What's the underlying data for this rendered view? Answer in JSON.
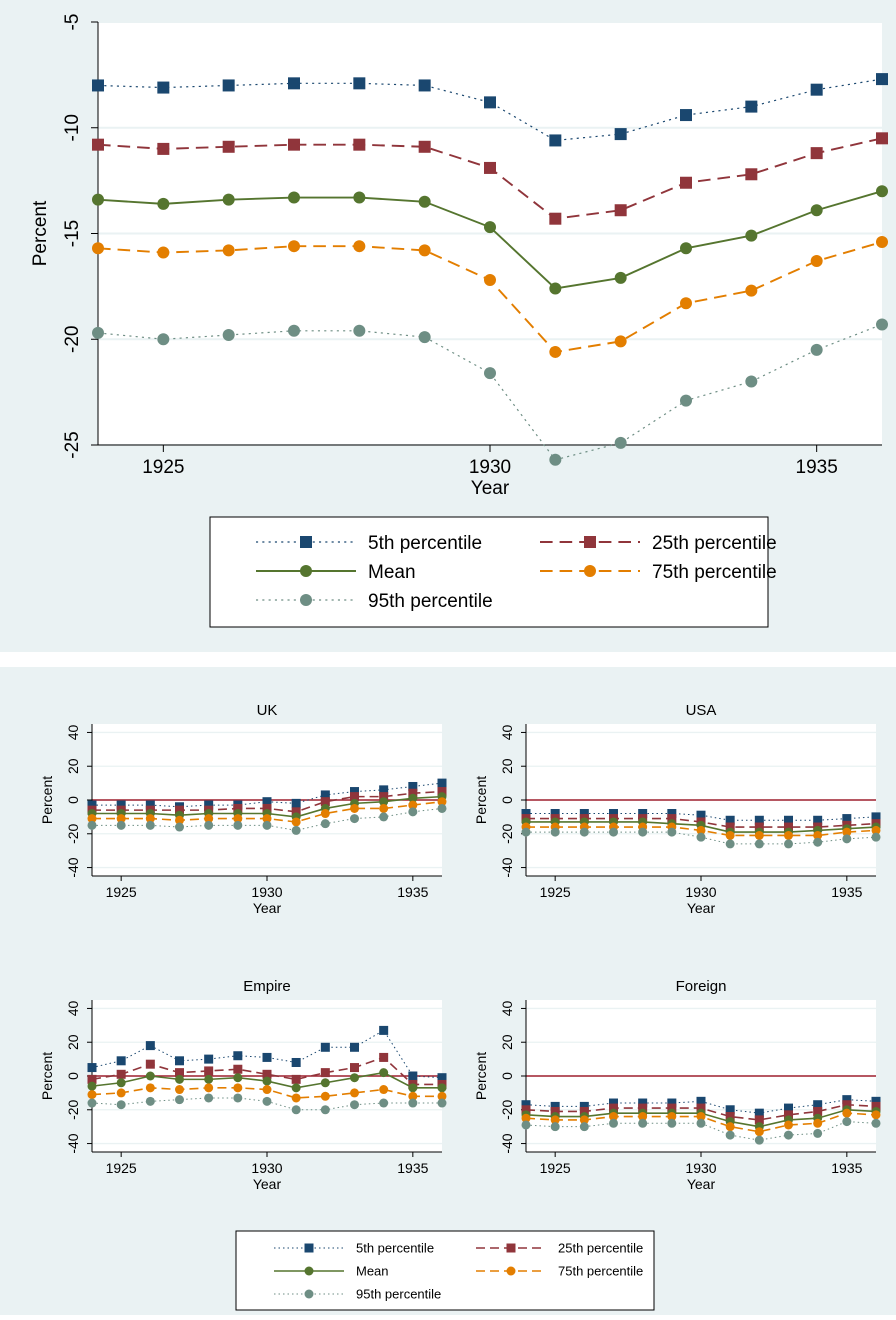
{
  "colors": {
    "panel_bg": "#eaf2f3",
    "plot_bg": "#ffffff",
    "grid": "#eaf2f3",
    "zero_line": "#a0202e",
    "p5": "#1a476f",
    "p25": "#90353b",
    "mean": "#55752f",
    "p75": "#e37e00",
    "p95": "#6e8e84"
  },
  "chart_data": [
    {
      "id": "overall",
      "type": "line",
      "title": "",
      "xlabel": "Year",
      "ylabel": "Percent",
      "xlim": [
        1924,
        1936
      ],
      "ylim": [
        -25,
        -5
      ],
      "xticks": [
        1925,
        1930,
        1935
      ],
      "yticks": [
        -25,
        -20,
        -15,
        -10,
        -5
      ],
      "zero_line": false,
      "x": [
        1924,
        1925,
        1926,
        1927,
        1928,
        1929,
        1930,
        1931,
        1932,
        1933,
        1934,
        1935,
        1936
      ],
      "series": [
        {
          "key": "p5",
          "name": "5th percentile",
          "values": [
            -8.0,
            -8.1,
            -8.0,
            -7.9,
            -7.9,
            -8.0,
            -8.8,
            -10.6,
            -10.3,
            -9.4,
            -9.0,
            -8.2,
            -7.7
          ]
        },
        {
          "key": "p25",
          "name": "25th percentile",
          "values": [
            -10.8,
            -11.0,
            -10.9,
            -10.8,
            -10.8,
            -10.9,
            -11.9,
            -14.3,
            -13.9,
            -12.6,
            -12.2,
            -11.2,
            -10.5
          ]
        },
        {
          "key": "mean",
          "name": "Mean",
          "values": [
            -13.4,
            -13.6,
            -13.4,
            -13.3,
            -13.3,
            -13.5,
            -14.7,
            -17.6,
            -17.1,
            -15.7,
            -15.1,
            -13.9,
            -13.0
          ]
        },
        {
          "key": "p75",
          "name": "75th percentile",
          "values": [
            -15.7,
            -15.9,
            -15.8,
            -15.6,
            -15.6,
            -15.8,
            -17.2,
            -20.6,
            -20.1,
            -18.3,
            -17.7,
            -16.3,
            -15.4
          ]
        },
        {
          "key": "p95",
          "name": "95th percentile",
          "values": [
            -19.7,
            -20.0,
            -19.8,
            -19.6,
            -19.6,
            -19.9,
            -21.6,
            -25.7,
            -24.9,
            -22.9,
            -22.0,
            -20.5,
            -19.3
          ]
        }
      ]
    },
    {
      "id": "uk",
      "type": "line",
      "title": "UK",
      "xlabel": "Year",
      "ylabel": "Percent",
      "xlim": [
        1924,
        1936
      ],
      "ylim": [
        -45,
        45
      ],
      "xticks": [
        1925,
        1930,
        1935
      ],
      "yticks": [
        -40,
        -20,
        0,
        20,
        40
      ],
      "zero_line": true,
      "x": [
        1924,
        1925,
        1926,
        1927,
        1928,
        1929,
        1930,
        1931,
        1932,
        1933,
        1934,
        1935,
        1936
      ],
      "series": [
        {
          "key": "p5",
          "name": "5th percentile",
          "values": [
            -3,
            -3,
            -3,
            -4,
            -3,
            -3,
            -1,
            -2,
            3,
            5,
            6,
            8,
            10
          ]
        },
        {
          "key": "p25",
          "name": "25th percentile",
          "values": [
            -6,
            -6,
            -6,
            -6,
            -6,
            -5,
            -5,
            -7,
            -1,
            2,
            2,
            4,
            5
          ]
        },
        {
          "key": "mean",
          "name": "Mean",
          "values": [
            -8,
            -8,
            -8,
            -9,
            -8,
            -8,
            -8,
            -10,
            -5,
            -2,
            -1,
            1,
            2
          ]
        },
        {
          "key": "p75",
          "name": "75th percentile",
          "values": [
            -11,
            -11,
            -11,
            -12,
            -11,
            -11,
            -11,
            -13,
            -8,
            -5,
            -5,
            -3,
            -1
          ]
        },
        {
          "key": "p95",
          "name": "95th percentile",
          "values": [
            -15,
            -15,
            -15,
            -16,
            -15,
            -15,
            -15,
            -18,
            -14,
            -11,
            -10,
            -7,
            -5
          ]
        }
      ]
    },
    {
      "id": "usa",
      "type": "line",
      "title": "USA",
      "xlabel": "Year",
      "ylabel": "Percent",
      "xlim": [
        1924,
        1936
      ],
      "ylim": [
        -45,
        45
      ],
      "xticks": [
        1925,
        1930,
        1935
      ],
      "yticks": [
        -40,
        -20,
        0,
        20,
        40
      ],
      "zero_line": true,
      "x": [
        1924,
        1925,
        1926,
        1927,
        1928,
        1929,
        1930,
        1931,
        1932,
        1933,
        1934,
        1935,
        1936
      ],
      "series": [
        {
          "key": "p5",
          "name": "5th percentile",
          "values": [
            -8,
            -8,
            -8,
            -8,
            -8,
            -8,
            -9,
            -12,
            -12,
            -12,
            -12,
            -11,
            -10
          ]
        },
        {
          "key": "p25",
          "name": "25th percentile",
          "values": [
            -11,
            -11,
            -11,
            -11,
            -11,
            -11,
            -13,
            -16,
            -16,
            -16,
            -16,
            -15,
            -14
          ]
        },
        {
          "key": "mean",
          "name": "Mean",
          "values": [
            -13,
            -13,
            -13,
            -13,
            -13,
            -14,
            -15,
            -19,
            -19,
            -19,
            -18,
            -17,
            -16
          ]
        },
        {
          "key": "p75",
          "name": "75th percentile",
          "values": [
            -16,
            -16,
            -16,
            -16,
            -16,
            -16,
            -18,
            -21,
            -21,
            -21,
            -21,
            -19,
            -18
          ]
        },
        {
          "key": "p95",
          "name": "95th percentile",
          "values": [
            -19,
            -19,
            -19,
            -19,
            -19,
            -19,
            -22,
            -26,
            -26,
            -26,
            -25,
            -23,
            -22
          ]
        }
      ]
    },
    {
      "id": "empire",
      "type": "line",
      "title": "Empire",
      "xlabel": "Year",
      "ylabel": "Percent",
      "xlim": [
        1924,
        1936
      ],
      "ylim": [
        -45,
        45
      ],
      "xticks": [
        1925,
        1930,
        1935
      ],
      "yticks": [
        -40,
        -20,
        0,
        20,
        40
      ],
      "zero_line": true,
      "x": [
        1924,
        1925,
        1926,
        1927,
        1928,
        1929,
        1930,
        1931,
        1932,
        1933,
        1934,
        1935,
        1936
      ],
      "series": [
        {
          "key": "p5",
          "name": "5th percentile",
          "values": [
            5,
            9,
            18,
            9,
            10,
            12,
            11,
            8,
            17,
            17,
            27,
            0,
            -1
          ]
        },
        {
          "key": "p25",
          "name": "25th percentile",
          "values": [
            -2,
            1,
            7,
            2,
            3,
            4,
            1,
            -2,
            2,
            5,
            11,
            -5,
            -5
          ]
        },
        {
          "key": "mean",
          "name": "Mean",
          "values": [
            -6,
            -4,
            0,
            -2,
            -2,
            -1,
            -3,
            -7,
            -4,
            -1,
            2,
            -7,
            -7
          ]
        },
        {
          "key": "p75",
          "name": "75th percentile",
          "values": [
            -11,
            -10,
            -7,
            -8,
            -7,
            -7,
            -8,
            -13,
            -12,
            -10,
            -8,
            -12,
            -12
          ]
        },
        {
          "key": "p95",
          "name": "95th percentile",
          "values": [
            -16,
            -17,
            -15,
            -14,
            -13,
            -13,
            -15,
            -20,
            -20,
            -17,
            -16,
            -16,
            -16
          ]
        }
      ]
    },
    {
      "id": "foreign",
      "type": "line",
      "title": "Foreign",
      "xlabel": "Year",
      "ylabel": "Percent",
      "xlim": [
        1924,
        1936
      ],
      "ylim": [
        -45,
        45
      ],
      "xticks": [
        1925,
        1930,
        1935
      ],
      "yticks": [
        -40,
        -20,
        0,
        20,
        40
      ],
      "zero_line": true,
      "x": [
        1924,
        1925,
        1926,
        1927,
        1928,
        1929,
        1930,
        1931,
        1932,
        1933,
        1934,
        1935,
        1936
      ],
      "series": [
        {
          "key": "p5",
          "name": "5th percentile",
          "values": [
            -17,
            -18,
            -18,
            -16,
            -16,
            -16,
            -15,
            -20,
            -22,
            -19,
            -17,
            -14,
            -15
          ]
        },
        {
          "key": "p25",
          "name": "25th percentile",
          "values": [
            -20,
            -21,
            -21,
            -19,
            -19,
            -19,
            -19,
            -24,
            -26,
            -23,
            -21,
            -17,
            -18
          ]
        },
        {
          "key": "mean",
          "name": "Mean",
          "values": [
            -23,
            -24,
            -24,
            -22,
            -22,
            -22,
            -22,
            -27,
            -30,
            -26,
            -25,
            -20,
            -21
          ]
        },
        {
          "key": "p75",
          "name": "75th percentile",
          "values": [
            -25,
            -26,
            -26,
            -24,
            -24,
            -24,
            -24,
            -30,
            -33,
            -29,
            -28,
            -22,
            -23
          ]
        },
        {
          "key": "p95",
          "name": "95th percentile",
          "values": [
            -29,
            -30,
            -30,
            -28,
            -28,
            -28,
            -28,
            -35,
            -38,
            -35,
            -34,
            -27,
            -28
          ]
        }
      ]
    }
  ],
  "legend": [
    {
      "key": "p5",
      "name": "5th percentile"
    },
    {
      "key": "p25",
      "name": "25th percentile"
    },
    {
      "key": "mean",
      "name": "Mean"
    },
    {
      "key": "p75",
      "name": "75th percentile"
    },
    {
      "key": "p95",
      "name": "95th percentile"
    }
  ]
}
